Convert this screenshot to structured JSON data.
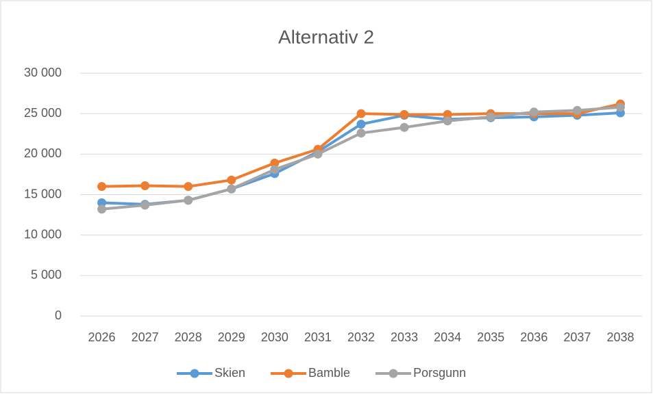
{
  "chart_data": {
    "type": "line",
    "title": "Alternativ 2",
    "categories": [
      "2026",
      "2027",
      "2028",
      "2029",
      "2030",
      "2031",
      "2032",
      "2033",
      "2034",
      "2035",
      "2036",
      "2037",
      "2038"
    ],
    "series": [
      {
        "name": "Skien",
        "color": "#5b9bd5",
        "values": [
          14000,
          13800,
          14300,
          15700,
          17600,
          20300,
          23700,
          24800,
          24300,
          24500,
          24600,
          24800,
          25100
        ]
      },
      {
        "name": "Bamble",
        "color": "#ed7d31",
        "values": [
          16000,
          16100,
          16000,
          16800,
          18900,
          20600,
          25000,
          24900,
          24900,
          25000,
          25000,
          25000,
          26200
        ]
      },
      {
        "name": "Porsgunn",
        "color": "#a5a5a5",
        "values": [
          13200,
          13700,
          14300,
          15700,
          18100,
          20000,
          22600,
          23300,
          24100,
          24600,
          25200,
          25400,
          25800
        ]
      }
    ],
    "ylim": [
      0,
      30000
    ],
    "yticks": [
      0,
      {
        "value": 5000,
        "label": "5 000"
      },
      {
        "value": 10000,
        "label": "10 000"
      },
      {
        "value": 15000,
        "label": "15 000"
      },
      {
        "value": 20000,
        "label": "20 000"
      },
      {
        "value": 25000,
        "label": "25 000"
      },
      {
        "value": 30000,
        "label": "30 000"
      }
    ],
    "grid": true,
    "legend": "bottom"
  }
}
